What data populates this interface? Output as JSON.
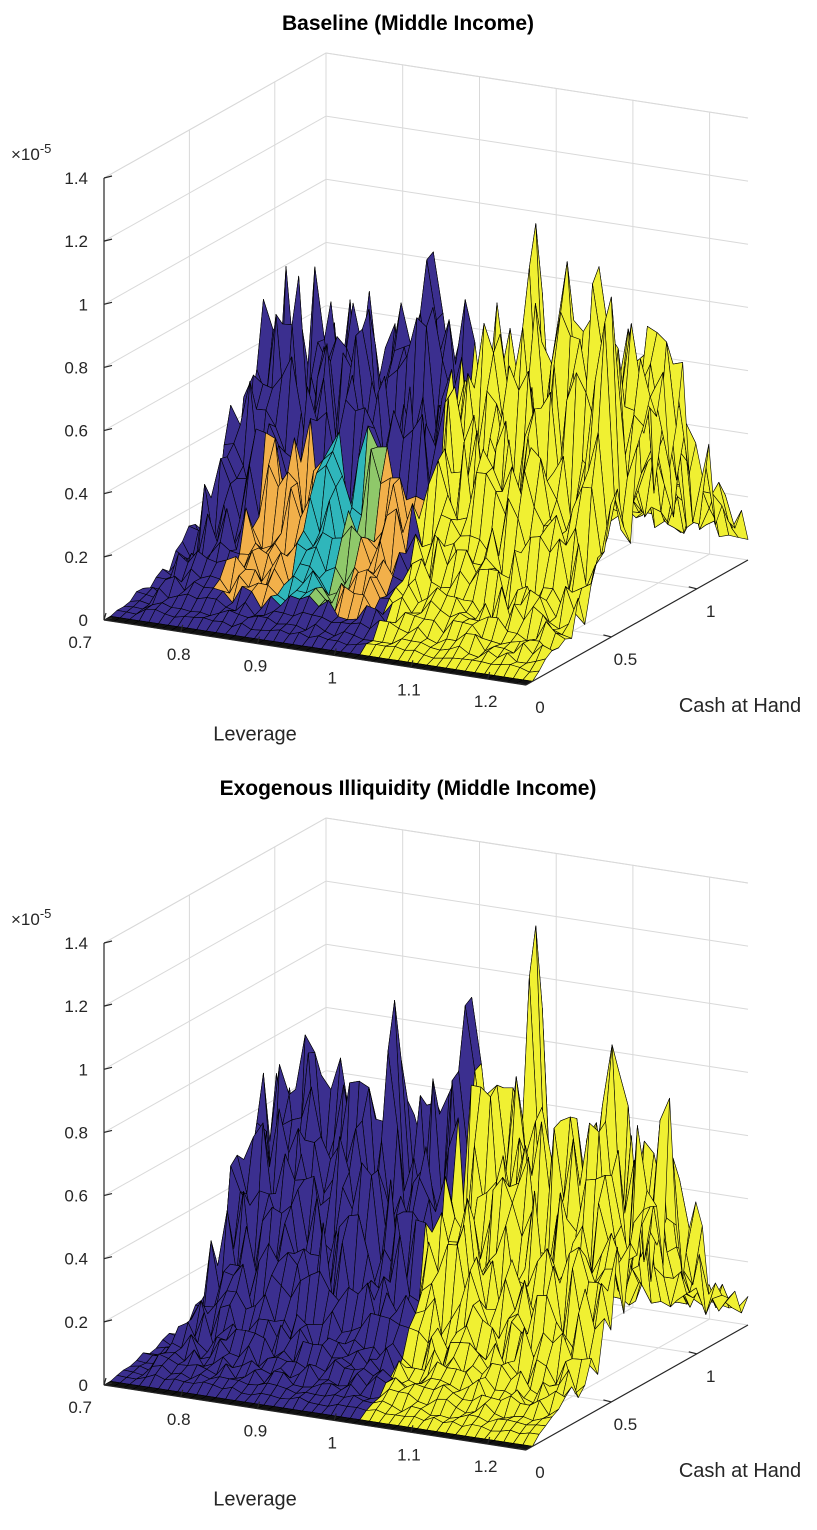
{
  "chart_data": [
    {
      "type": "surface",
      "title": "Baseline (Middle Income)",
      "xlabel": "Leverage",
      "ylabel": "Cash at Hand",
      "zlabel": "",
      "z_exponent_label": "×10",
      "z_exponent_power": "-5",
      "xlim": [
        0.7,
        1.25
      ],
      "ylim": [
        0,
        1.3
      ],
      "zlim": [
        0,
        1.4
      ],
      "x_ticks": [
        "0.7",
        "0.8",
        "0.9",
        "1",
        "1.1",
        "1.2"
      ],
      "y_ticks": [
        "0",
        "0.5",
        "1"
      ],
      "z_ticks": [
        "0",
        "0.2",
        "0.4",
        "0.6",
        "0.8",
        "1",
        "1.2",
        "1.4"
      ],
      "colors": {
        "low_region": "#3b2f8f",
        "high_region": "#f0f032",
        "mid_orange": "#f2b04a",
        "mid_teal": "#2fb6bb",
        "mid_green": "#8fc86a"
      },
      "grid": true,
      "surface_profile": [
        {
          "y": 0.1,
          "z_peak": 0.05
        },
        {
          "y": 0.35,
          "z_peak": 0.3
        },
        {
          "y": 0.6,
          "z_peak": 0.9
        },
        {
          "y": 0.85,
          "z_peak": 1.25
        },
        {
          "y": 1.1,
          "z_peak": 0.5
        },
        {
          "y": 1.3,
          "z_peak": 0.2
        }
      ],
      "color_split_leverage": 1.0,
      "peaks": [
        {
          "x": 0.93,
          "y": 0.9,
          "z": 1.2
        },
        {
          "x": 1.05,
          "y": 0.95,
          "z": 1.1
        },
        {
          "x": 1.12,
          "y": 0.8,
          "z": 1.25
        },
        {
          "x": 1.18,
          "y": 0.75,
          "z": 1.3
        },
        {
          "x": 1.22,
          "y": 0.6,
          "z": 1.25
        }
      ]
    },
    {
      "type": "surface",
      "title": "Exogenous Illiquidity (Middle Income)",
      "xlabel": "Leverage",
      "ylabel": "Cash at Hand",
      "zlabel": "",
      "z_exponent_label": "×10",
      "z_exponent_power": "-5",
      "xlim": [
        0.7,
        1.25
      ],
      "ylim": [
        0,
        1.3
      ],
      "zlim": [
        0,
        1.4
      ],
      "x_ticks": [
        "0.7",
        "0.8",
        "0.9",
        "1",
        "1.1",
        "1.2"
      ],
      "y_ticks": [
        "0",
        "0.5",
        "1"
      ],
      "z_ticks": [
        "0",
        "0.2",
        "0.4",
        "0.6",
        "0.8",
        "1",
        "1.2",
        "1.4"
      ],
      "colors": {
        "low_region": "#3b2f8f",
        "high_region": "#f0f032"
      },
      "grid": true,
      "surface_profile": [
        {
          "y": 0.1,
          "z_peak": 0.05
        },
        {
          "y": 0.35,
          "z_peak": 0.25
        },
        {
          "y": 0.6,
          "z_peak": 0.8
        },
        {
          "y": 0.85,
          "z_peak": 1.2
        },
        {
          "y": 1.1,
          "z_peak": 0.3
        },
        {
          "y": 1.3,
          "z_peak": 0.15
        }
      ],
      "color_split_leverage": 1.0,
      "peaks": [
        {
          "x": 0.98,
          "y": 0.9,
          "z": 1.3
        },
        {
          "x": 1.05,
          "y": 0.95,
          "z": 1.3
        },
        {
          "x": 1.17,
          "y": 0.85,
          "z": 1.2
        },
        {
          "x": 0.9,
          "y": 0.8,
          "z": 1.05
        }
      ]
    }
  ]
}
